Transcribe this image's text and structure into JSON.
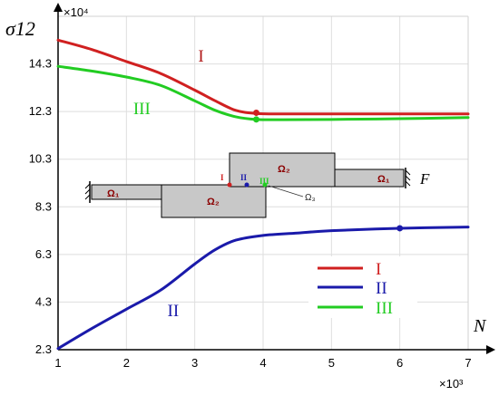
{
  "chart_data": {
    "type": "line",
    "ylabel": "σ12",
    "xlabel": "N",
    "y_multiplier": "×10⁴",
    "x_multiplier": "×10³",
    "xlim": [
      1,
      7
    ],
    "ylim": [
      2.3,
      16.3
    ],
    "xticks": [
      1,
      2,
      3,
      4,
      5,
      6,
      7
    ],
    "yticks": [
      2.3,
      4.3,
      6.3,
      8.3,
      10.3,
      12.3,
      14.3
    ],
    "ytick_labels": [
      "2.3",
      "4.3",
      "6.3",
      "8.3",
      "10.3",
      "12.3",
      "14.3"
    ],
    "grid": true,
    "legend_position": "lower-right",
    "series": [
      {
        "name": "I",
        "color": "#d02020",
        "points": [
          [
            1,
            15.3
          ],
          [
            1.5,
            14.9
          ],
          [
            2,
            14.4
          ],
          [
            2.5,
            13.9
          ],
          [
            3,
            13.2
          ],
          [
            3.3,
            12.75
          ],
          [
            3.6,
            12.35
          ],
          [
            3.9,
            12.22
          ],
          [
            4.3,
            12.2
          ],
          [
            5,
            12.2
          ],
          [
            6,
            12.2
          ],
          [
            7,
            12.2
          ]
        ],
        "marker": [
          3.9,
          12.25
        ]
      },
      {
        "name": "II",
        "color": "#1a1aaa",
        "points": [
          [
            1,
            2.35
          ],
          [
            1.5,
            3.2
          ],
          [
            2,
            4.0
          ],
          [
            2.5,
            4.8
          ],
          [
            3,
            5.9
          ],
          [
            3.3,
            6.5
          ],
          [
            3.6,
            6.9
          ],
          [
            4,
            7.1
          ],
          [
            4.5,
            7.2
          ],
          [
            5,
            7.3
          ],
          [
            6,
            7.4
          ],
          [
            7,
            7.45
          ]
        ],
        "marker": [
          6.0,
          7.4
        ]
      },
      {
        "name": "III",
        "color": "#22cc22",
        "points": [
          [
            1,
            14.2
          ],
          [
            1.5,
            14.0
          ],
          [
            2,
            13.75
          ],
          [
            2.5,
            13.4
          ],
          [
            3,
            12.75
          ],
          [
            3.3,
            12.35
          ],
          [
            3.6,
            12.08
          ],
          [
            3.9,
            11.97
          ],
          [
            4.3,
            11.96
          ],
          [
            5,
            11.97
          ],
          [
            6,
            12.0
          ],
          [
            7,
            12.05
          ]
        ],
        "marker": [
          3.9,
          11.97
        ]
      }
    ],
    "curve_labels": [
      {
        "text": "I",
        "x": 3.05,
        "y": 14.4,
        "color": "#b01818"
      },
      {
        "text": "III",
        "x": 2.1,
        "y": 12.2,
        "color": "#22cc22"
      },
      {
        "text": "II",
        "x": 2.6,
        "y": 3.7,
        "color": "#1a1aaa"
      }
    ],
    "legend": [
      {
        "label": "I",
        "color": "#d02020"
      },
      {
        "label": "II",
        "color": "#1a1aaa"
      },
      {
        "label": "III",
        "color": "#22cc22"
      }
    ],
    "inset": {
      "regions": [
        "Ω₁",
        "Ω₂",
        "Ω₂",
        "Ω₁"
      ],
      "point_labels": [
        "I",
        "II",
        "III"
      ],
      "omega3_label": "Ω₃",
      "force_label": "F"
    }
  }
}
